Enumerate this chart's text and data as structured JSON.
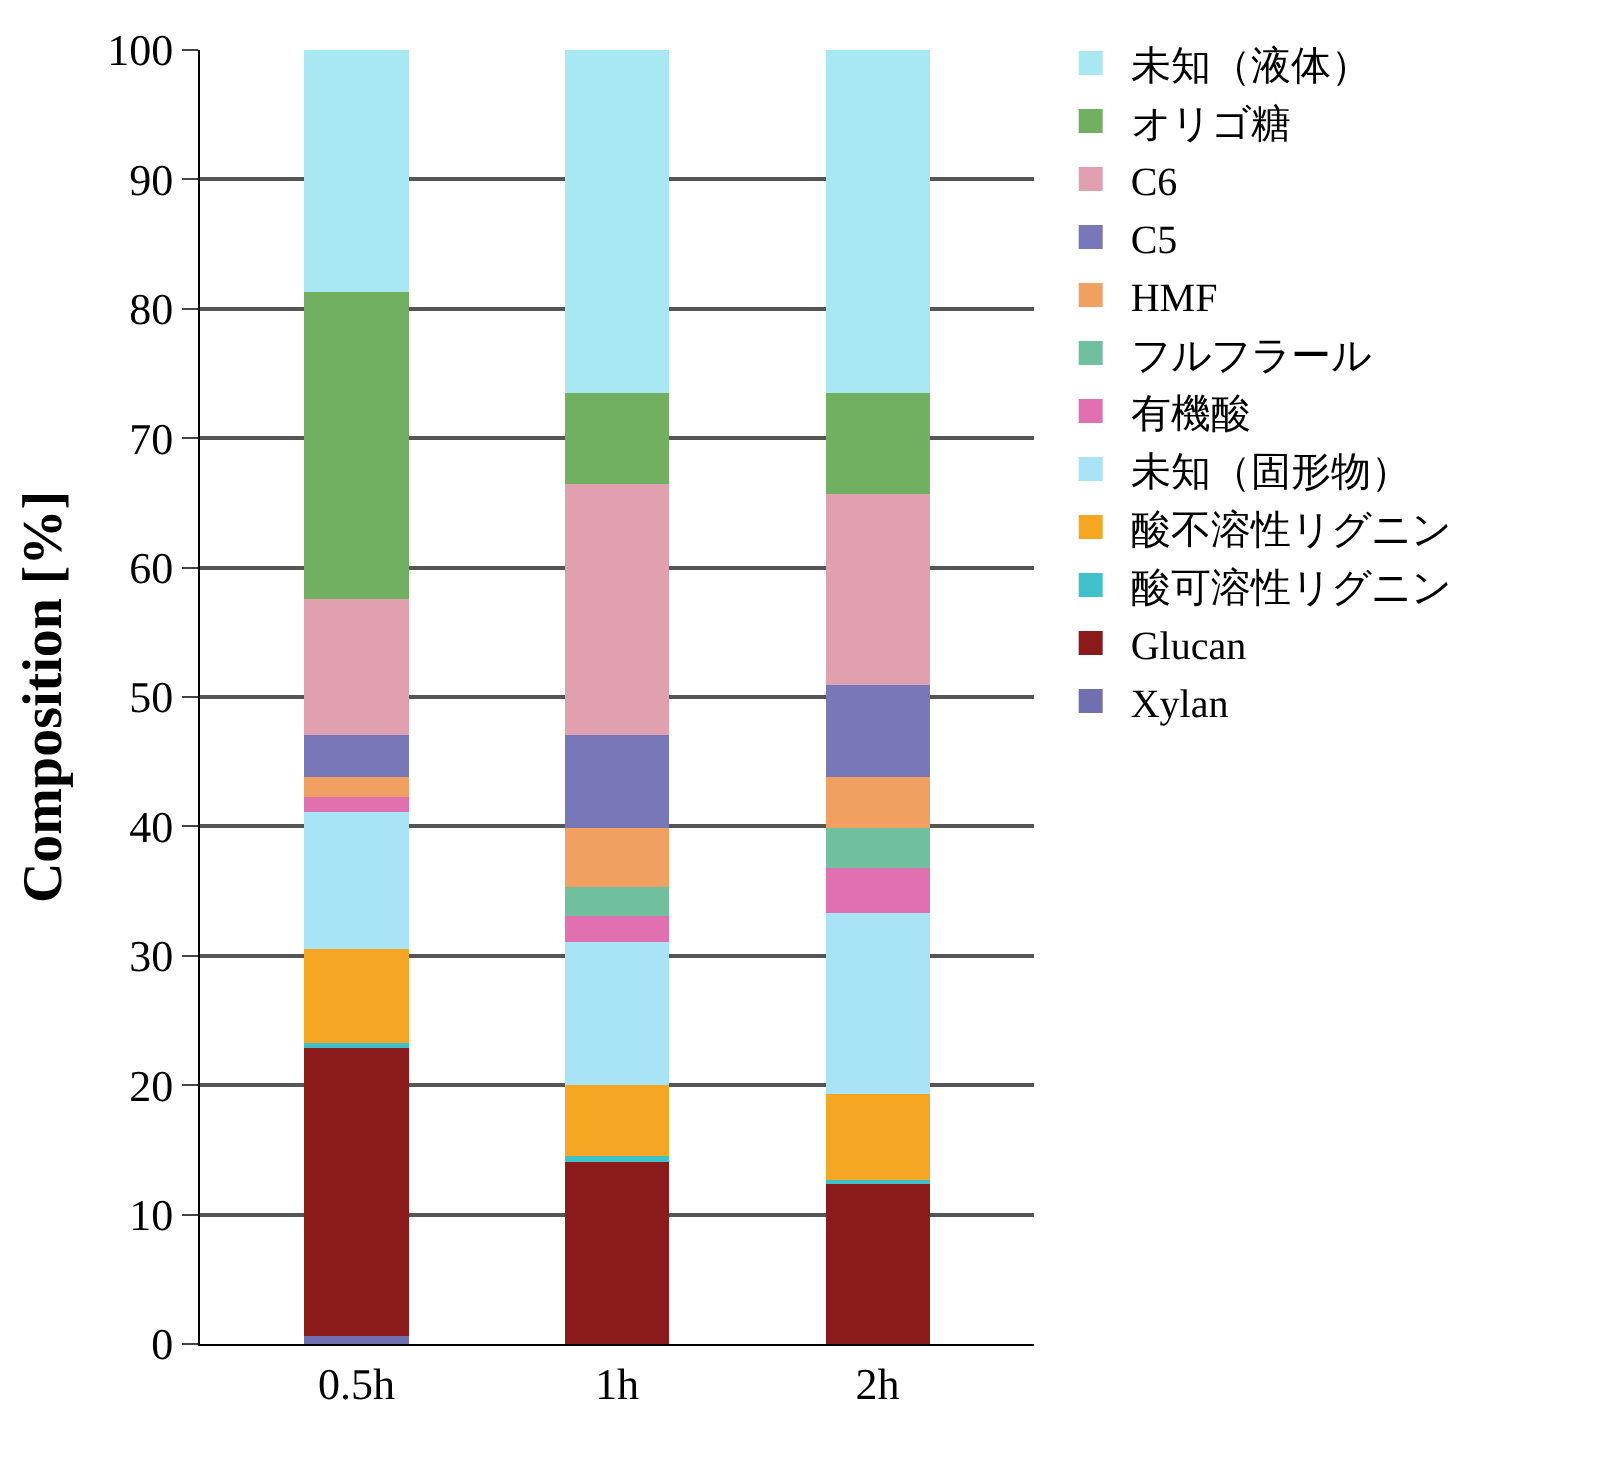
{
  "chart_data": {
    "type": "bar",
    "stacked": true,
    "ylabel": "Composition [%]",
    "categories": [
      "0.5h",
      "1h",
      "2h"
    ],
    "ylim": [
      0,
      100
    ],
    "yticks": [
      0,
      10,
      20,
      30,
      40,
      50,
      60,
      70,
      80,
      90,
      100
    ],
    "grid": "y",
    "legend": "right",
    "series": [
      {
        "name": "Xylan",
        "color": "#7070b0",
        "values": [
          0.6,
          0,
          0
        ]
      },
      {
        "name": "Glucan",
        "color": "#8b1a1a",
        "values": [
          22.3,
          14.2,
          12.5
        ]
      },
      {
        "name": "酸可溶性リグニン",
        "color": "#40c0c8",
        "values": [
          0.4,
          0.3,
          0.2
        ]
      },
      {
        "name": "酸不溶性リグニン",
        "color": "#f5a623",
        "values": [
          7.2,
          5.5,
          6.6
        ]
      },
      {
        "name": "未知（固形物）",
        "color": "#a8e4f5",
        "values": [
          10.6,
          11.1,
          14.0
        ]
      },
      {
        "name": "有機酸",
        "color": "#e070b0",
        "values": [
          1.2,
          2.0,
          3.5
        ]
      },
      {
        "name": "フルフラール",
        "color": "#70c0a0",
        "values": [
          0,
          2.2,
          3.1
        ]
      },
      {
        "name": "HMF",
        "color": "#f0a060",
        "values": [
          1.5,
          4.6,
          3.9
        ]
      },
      {
        "name": "C5",
        "color": "#7878b8",
        "values": [
          3.3,
          7.2,
          7.1
        ]
      },
      {
        "name": "C6",
        "color": "#e0a0b0",
        "values": [
          10.5,
          19.4,
          14.8
        ]
      },
      {
        "name": "オリゴ糖",
        "color": "#70b060",
        "values": [
          23.7,
          7.0,
          7.8
        ]
      },
      {
        "name": "未知（液体）",
        "color": "#a8e8f2",
        "values": [
          18.7,
          26.5,
          26.5
        ]
      }
    ]
  }
}
